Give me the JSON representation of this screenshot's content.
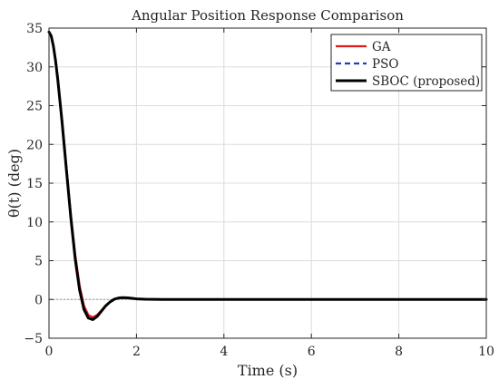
{
  "chart_data": {
    "type": "line",
    "title": "Angular Position Response Comparison",
    "xlabel": "Time (s)",
    "ylabel": "θ(t) (deg)",
    "xlim": [
      0,
      10
    ],
    "ylim": [
      -5,
      35
    ],
    "xticks": [
      "0",
      "2",
      "4",
      "6",
      "8",
      "10"
    ],
    "yticks": [
      "−5",
      "0",
      "5",
      "10",
      "15",
      "20",
      "25",
      "30",
      "35"
    ],
    "grid": true,
    "legend_position": "top-right",
    "reference_line_y": 0,
    "x": [
      0,
      0.05,
      0.1,
      0.15,
      0.2,
      0.3,
      0.4,
      0.5,
      0.6,
      0.7,
      0.8,
      0.9,
      1.0,
      1.1,
      1.2,
      1.3,
      1.4,
      1.5,
      1.6,
      1.7,
      1.8,
      1.9,
      2.0,
      2.2,
      2.4,
      2.6,
      2.8,
      3.0,
      3.5,
      4,
      5,
      6,
      7,
      8,
      9,
      10
    ],
    "series": [
      {
        "name": "GA",
        "color": "#e31a1c",
        "style": "solid",
        "values": [
          34.5,
          34.0,
          32.8,
          31.0,
          28.7,
          23.2,
          17.0,
          11.0,
          5.8,
          1.8,
          -0.8,
          -2.0,
          -2.3,
          -2.0,
          -1.4,
          -0.8,
          -0.3,
          0.05,
          0.2,
          0.25,
          0.22,
          0.16,
          0.1,
          0.04,
          0.01,
          0.0,
          0.0,
          0.0,
          0.0,
          0.0,
          0.0,
          0.0,
          0.0,
          0.0,
          0.0,
          0.0
        ]
      },
      {
        "name": "PSO",
        "color": "#1f3fbf",
        "style": "dashed",
        "values": [
          34.5,
          34.0,
          32.7,
          30.8,
          28.4,
          22.8,
          16.6,
          10.5,
          5.2,
          1.2,
          -1.3,
          -2.4,
          -2.6,
          -2.2,
          -1.5,
          -0.8,
          -0.3,
          0.05,
          0.2,
          0.24,
          0.2,
          0.14,
          0.08,
          0.03,
          0.01,
          0.0,
          0.0,
          0.0,
          0.0,
          0.0,
          0.0,
          0.0,
          0.0,
          0.0,
          0.0,
          0.0
        ]
      },
      {
        "name": "SBOC (proposed)",
        "color": "#000000",
        "style": "solid",
        "values": [
          34.5,
          34.0,
          32.7,
          30.8,
          28.4,
          22.8,
          16.6,
          10.5,
          5.2,
          1.2,
          -1.3,
          -2.4,
          -2.6,
          -2.2,
          -1.5,
          -0.8,
          -0.3,
          0.05,
          0.2,
          0.24,
          0.2,
          0.14,
          0.08,
          0.03,
          0.01,
          0.0,
          0.0,
          0.0,
          0.0,
          0.0,
          0.0,
          0.0,
          0.0,
          0.0,
          0.0,
          0.0
        ]
      }
    ]
  }
}
